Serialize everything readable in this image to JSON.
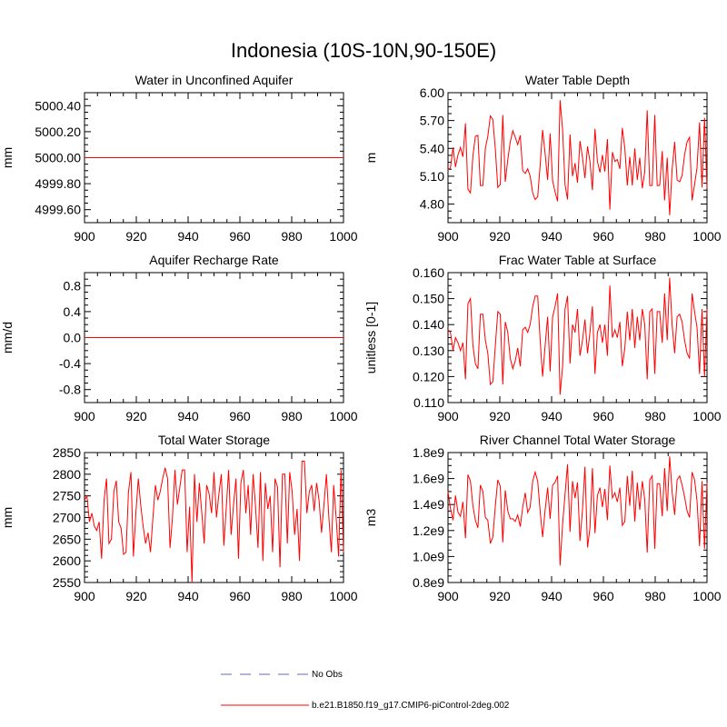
{
  "title": "Indonesia (10S-10N,90-150E)",
  "legend": {
    "entries": [
      {
        "label": "No Obs",
        "color": "#9999dd",
        "style": "dashed"
      },
      {
        "label": "b.e21.B1850.f19_g17.CMIP6-piControl-2deg.002",
        "color": "#ff0000",
        "style": "solid"
      }
    ]
  },
  "chart_data": [
    {
      "type": "line",
      "title": "Water in Unconfined Aquifer",
      "ylabel": "mm",
      "xlim": [
        900,
        1000
      ],
      "ylim": [
        4999.5,
        5000.5
      ],
      "xticks": [
        900,
        920,
        940,
        960,
        980,
        1000
      ],
      "yticks": [
        4999.6,
        4999.8,
        5000.0,
        5000.2,
        5000.4
      ],
      "ytick_labels": [
        "4999.60",
        "4999.80",
        "5000.00",
        "5000.20",
        "5000.40"
      ],
      "constant": 5000.0,
      "values": []
    },
    {
      "type": "line",
      "title": "Water Table Depth",
      "ylabel": "m",
      "xlim": [
        900,
        1000
      ],
      "ylim": [
        4.6,
        6.0
      ],
      "xticks": [
        900,
        920,
        940,
        960,
        980,
        1000
      ],
      "yticks": [
        4.8,
        5.1,
        5.4,
        5.7,
        6.0
      ],
      "ytick_labels": [
        "4.80",
        "5.10",
        "5.40",
        "5.70",
        "6.00"
      ],
      "values": [
        5.17,
        5.19,
        5.41,
        5.2,
        5.33,
        5.41,
        5.31,
        5.67,
        4.96,
        4.92,
        5.32,
        5.53,
        5.54,
        5.0,
        5.0,
        5.4,
        5.53,
        5.75,
        5.71,
        5.39,
        4.98,
        5.01,
        5.76,
        5.04,
        5.28,
        5.47,
        5.59,
        5.52,
        5.44,
        5.54,
        5.16,
        5.13,
        5.18,
        5.1,
        4.92,
        4.85,
        4.88,
        5.22,
        5.6,
        5.34,
        5.06,
        5.56,
        5.05,
        4.93,
        4.83,
        5.92,
        5.6,
        5.01,
        4.85,
        5.55,
        5.1,
        5.24,
        5.03,
        5.48,
        5.3,
        5.08,
        5.42,
        5.26,
        4.95,
        5.61,
        5.26,
        5.14,
        5.33,
        5.15,
        5.5,
        4.74,
        5.36,
        5.26,
        5.28,
        5.18,
        5.62,
        5.4,
        5.0,
        5.31,
        5.0,
        5.4,
        5.06,
        5.3,
        4.97,
        5.15,
        5.81,
        5.0,
        5.0,
        5.76,
        5.0,
        5.0,
        5.37,
        4.84,
        5.3,
        4.68,
        5.17,
        5.47,
        5.06,
        5.04,
        5.11,
        5.33,
        5.47,
        5.52,
        4.84,
        5.01,
        5.19,
        5.68,
        4.98,
        5.73,
        4.97
      ]
    },
    {
      "type": "line",
      "title": "Aquifer Recharge Rate",
      "ylabel": "mm/d",
      "xlim": [
        900,
        1000
      ],
      "ylim": [
        -1.0,
        1.0
      ],
      "xticks": [
        900,
        920,
        940,
        960,
        980,
        1000
      ],
      "yticks": [
        -0.8,
        -0.4,
        0.0,
        0.4,
        0.8
      ],
      "ytick_labels": [
        "-0.8",
        "-0.4",
        "0.0",
        "0.4",
        "0.8"
      ],
      "constant": 0.0,
      "values": []
    },
    {
      "type": "line",
      "title": "Frac Water Table at Surface",
      "ylabel": "unitless [0-1]",
      "xlim": [
        900,
        1000
      ],
      "ylim": [
        0.11,
        0.16
      ],
      "xticks": [
        900,
        920,
        940,
        960,
        980,
        1000
      ],
      "yticks": [
        0.11,
        0.12,
        0.13,
        0.14,
        0.15,
        0.16
      ],
      "ytick_labels": [
        "0.110",
        "0.120",
        "0.130",
        "0.140",
        "0.150",
        "0.160"
      ],
      "values": [
        0.138,
        0.137,
        0.13,
        0.135,
        0.133,
        0.13,
        0.133,
        0.119,
        0.148,
        0.15,
        0.132,
        0.125,
        0.123,
        0.144,
        0.144,
        0.134,
        0.129,
        0.117,
        0.118,
        0.132,
        0.145,
        0.144,
        0.117,
        0.141,
        0.137,
        0.127,
        0.123,
        0.126,
        0.131,
        0.124,
        0.138,
        0.139,
        0.137,
        0.14,
        0.147,
        0.151,
        0.151,
        0.134,
        0.12,
        0.132,
        0.143,
        0.122,
        0.143,
        0.147,
        0.152,
        0.113,
        0.124,
        0.146,
        0.151,
        0.125,
        0.14,
        0.137,
        0.146,
        0.128,
        0.134,
        0.142,
        0.129,
        0.137,
        0.147,
        0.121,
        0.137,
        0.14,
        0.133,
        0.14,
        0.128,
        0.155,
        0.135,
        0.138,
        0.135,
        0.141,
        0.124,
        0.131,
        0.145,
        0.134,
        0.146,
        0.131,
        0.143,
        0.134,
        0.146,
        0.14,
        0.119,
        0.145,
        0.146,
        0.121,
        0.145,
        0.145,
        0.133,
        0.152,
        0.134,
        0.158,
        0.14,
        0.129,
        0.143,
        0.144,
        0.141,
        0.134,
        0.129,
        0.127,
        0.152,
        0.145,
        0.139,
        0.121,
        0.146,
        0.12,
        0.146
      ]
    },
    {
      "type": "line",
      "title": "Total Water Storage",
      "ylabel": "mm",
      "xlim": [
        900,
        1000
      ],
      "ylim": [
        2550,
        2850
      ],
      "xticks": [
        900,
        920,
        940,
        960,
        980,
        1000
      ],
      "yticks": [
        2550,
        2600,
        2650,
        2700,
        2750,
        2800,
        2850
      ],
      "ytick_labels": [
        "2550",
        "2600",
        "2650",
        "2700",
        "2750",
        "2800",
        "2850"
      ],
      "values": [
        2740,
        2750,
        2690,
        2710,
        2680,
        2670,
        2690,
        2605,
        2740,
        2790,
        2640,
        2650,
        2760,
        2785,
        2690,
        2675,
        2615,
        2620,
        2760,
        2805,
        2610,
        2710,
        2790,
        2730,
        2680,
        2640,
        2665,
        2620,
        2700,
        2775,
        2740,
        2760,
        2790,
        2815,
        2790,
        2630,
        2700,
        2810,
        2730,
        2770,
        2810,
        2810,
        2620,
        2725,
        2550,
        2800,
        2690,
        2780,
        2710,
        2640,
        2775,
        2755,
        2710,
        2805,
        2700,
        2755,
        2800,
        2635,
        2720,
        2810,
        2660,
        2730,
        2790,
        2605,
        2780,
        2810,
        2710,
        2775,
        2660,
        2800,
        2725,
        2630,
        2805,
        2600,
        2780,
        2720,
        2750,
        2620,
        2790,
        2770,
        2585,
        2800,
        2800,
        2640,
        2805,
        2760,
        2660,
        2720,
        2600,
        2830,
        2830,
        2710,
        2760,
        2775,
        2715,
        2780,
        2740,
        2665,
        2730,
        2800,
        2700,
        2620,
        2775,
        2700,
        2610,
        2810,
        2620
      ]
    },
    {
      "type": "line",
      "title": "River Channel Total Water Storage",
      "ylabel": "m3",
      "xlim": [
        900,
        1000
      ],
      "ylim": [
        800000000.0,
        1800000000.0
      ],
      "xticks": [
        900,
        920,
        940,
        960,
        980,
        1000
      ],
      "yticks": [
        800000000.0,
        1000000000.0,
        1200000000.0,
        1400000000.0,
        1600000000.0,
        1800000000.0
      ],
      "ytick_labels": [
        "0.8e9",
        "1.0e9",
        "1.2e9",
        "1.4e9",
        "1.6e9",
        "1.8e9"
      ],
      "values": [
        1500000000.0,
        1370000000.0,
        1280000000.0,
        1470000000.0,
        1340000000.0,
        1310000000.0,
        1420000000.0,
        1140000000.0,
        1630000000.0,
        1580000000.0,
        1390000000.0,
        1280000000.0,
        1220000000.0,
        1550000000.0,
        1500000000.0,
        1300000000.0,
        1280000000.0,
        1100000000.0,
        1150000000.0,
        1390000000.0,
        1590000000.0,
        1540000000.0,
        1110000000.0,
        1510000000.0,
        1350000000.0,
        1290000000.0,
        1290000000.0,
        1270000000.0,
        1320000000.0,
        1230000000.0,
        1380000000.0,
        1490000000.0,
        1340000000.0,
        1380000000.0,
        1580000000.0,
        1650000000.0,
        1580000000.0,
        1350000000.0,
        1150000000.0,
        1360000000.0,
        1530000000.0,
        1290000000.0,
        1550000000.0,
        1570000000.0,
        1620000000.0,
        930000000.0,
        1250000000.0,
        1480000000.0,
        1710000000.0,
        1190000000.0,
        1580000000.0,
        1450000000.0,
        1570000000.0,
        1120000000.0,
        1360000000.0,
        1690000000.0,
        1070000000.0,
        1220000000.0,
        1680000000.0,
        1180000000.0,
        1470000000.0,
        1530000000.0,
        1380000000.0,
        1520000000.0,
        1280000000.0,
        1700000000.0,
        1450000000.0,
        1490000000.0,
        1420000000.0,
        1530000000.0,
        1240000000.0,
        1270000000.0,
        1620000000.0,
        1390000000.0,
        1660000000.0,
        1270000000.0,
        1570000000.0,
        1360000000.0,
        1580000000.0,
        1440000000.0,
        1030000000.0,
        1590000000.0,
        1620000000.0,
        1060000000.0,
        1560000000.0,
        1560000000.0,
        1310000000.0,
        1680000000.0,
        1350000000.0,
        1770000000.0,
        1500000000.0,
        1320000000.0,
        1590000000.0,
        1620000000.0,
        1550000000.0,
        1460000000.0,
        1350000000.0,
        1300000000.0,
        1650000000.0,
        1590000000.0,
        1430000000.0,
        1080000000.0,
        1580000000.0,
        1060000000.0,
        1570000000.0
      ]
    }
  ]
}
